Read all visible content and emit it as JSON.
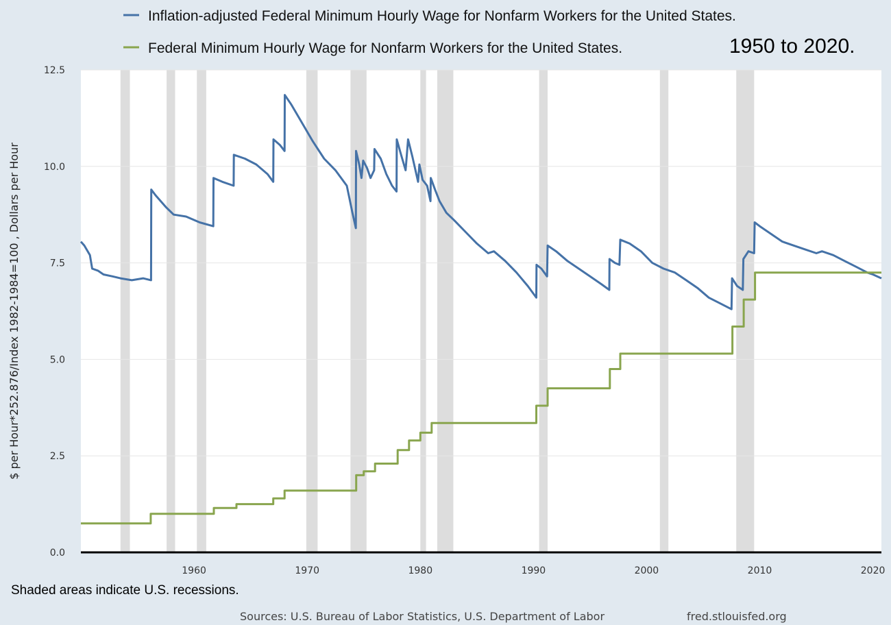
{
  "chart_data": {
    "type": "line",
    "subtitle": "1950 to 2020.",
    "ylabel": "$ per Hour*252.876/Index 1982-1984=100 , Dollars per Hour",
    "xlabel": "",
    "xlim": [
      1950.0,
      2020.75
    ],
    "ylim": [
      0,
      12.5
    ],
    "x_ticks": [
      1960,
      1970,
      1980,
      1990,
      2000,
      2010,
      2020
    ],
    "x_tick_labels": [
      "1960",
      "1970",
      "1980",
      "1990",
      "2000",
      "2010",
      "2020"
    ],
    "y_ticks": [
      0,
      2.5,
      5,
      7.5,
      10,
      12.5
    ],
    "y_tick_labels": [
      "0.0",
      "2.5",
      "5.0",
      "7.5",
      "10.0",
      "12.5"
    ],
    "grid": true,
    "legend_position": "top",
    "colors": {
      "real": "#4572a7",
      "nominal": "#89a54e",
      "recession": "#dddddd",
      "background": "#e1e9f0",
      "plot": "#ffffff"
    },
    "recessions": [
      [
        1953.5,
        1954.33
      ],
      [
        1957.58,
        1958.33
      ],
      [
        1960.25,
        1961.08
      ],
      [
        1969.92,
        1970.92
      ],
      [
        1973.83,
        1975.25
      ],
      [
        1980.0,
        1980.5
      ],
      [
        1981.5,
        1982.92
      ],
      [
        1990.5,
        1991.25
      ],
      [
        2001.17,
        2001.92
      ],
      [
        2007.92,
        2009.5
      ]
    ],
    "series": [
      {
        "name": "Inflation-adjusted Federal Minimum Hourly Wage for Nonfarm Workers for the United States.",
        "step": false,
        "points": [
          [
            1950.0,
            8.05
          ],
          [
            1950.3,
            7.95
          ],
          [
            1950.8,
            7.7
          ],
          [
            1951.0,
            7.35
          ],
          [
            1951.5,
            7.3
          ],
          [
            1952.0,
            7.2
          ],
          [
            1952.8,
            7.15
          ],
          [
            1953.5,
            7.1
          ],
          [
            1954.5,
            7.05
          ],
          [
            1955.5,
            7.1
          ],
          [
            1956.2,
            7.05
          ],
          [
            1956.22,
            9.4
          ],
          [
            1956.6,
            9.25
          ],
          [
            1957.5,
            8.95
          ],
          [
            1958.2,
            8.75
          ],
          [
            1959.3,
            8.7
          ],
          [
            1960.5,
            8.55
          ],
          [
            1961.7,
            8.45
          ],
          [
            1961.72,
            9.7
          ],
          [
            1962.5,
            9.6
          ],
          [
            1963.5,
            9.5
          ],
          [
            1963.52,
            10.3
          ],
          [
            1964.5,
            10.2
          ],
          [
            1965.5,
            10.05
          ],
          [
            1966.5,
            9.8
          ],
          [
            1967.0,
            9.6
          ],
          [
            1967.02,
            10.7
          ],
          [
            1967.6,
            10.55
          ],
          [
            1968.0,
            10.4
          ],
          [
            1968.02,
            11.85
          ],
          [
            1968.6,
            11.6
          ],
          [
            1969.5,
            11.15
          ],
          [
            1970.5,
            10.65
          ],
          [
            1971.5,
            10.2
          ],
          [
            1972.5,
            9.9
          ],
          [
            1973.5,
            9.5
          ],
          [
            1974.0,
            8.8
          ],
          [
            1974.3,
            8.4
          ],
          [
            1974.32,
            10.4
          ],
          [
            1974.6,
            10.05
          ],
          [
            1974.8,
            9.7
          ],
          [
            1974.95,
            10.15
          ],
          [
            1975.3,
            9.95
          ],
          [
            1975.6,
            9.7
          ],
          [
            1975.92,
            9.9
          ],
          [
            1975.95,
            10.45
          ],
          [
            1976.5,
            10.2
          ],
          [
            1977.0,
            9.8
          ],
          [
            1977.5,
            9.5
          ],
          [
            1977.9,
            9.35
          ],
          [
            1977.92,
            10.7
          ],
          [
            1978.3,
            10.3
          ],
          [
            1978.7,
            9.9
          ],
          [
            1978.92,
            10.7
          ],
          [
            1979.3,
            10.25
          ],
          [
            1979.8,
            9.6
          ],
          [
            1979.92,
            10.05
          ],
          [
            1980.2,
            9.65
          ],
          [
            1980.6,
            9.5
          ],
          [
            1980.9,
            9.1
          ],
          [
            1980.92,
            9.7
          ],
          [
            1981.3,
            9.4
          ],
          [
            1981.7,
            9.1
          ],
          [
            1982.3,
            8.8
          ],
          [
            1983.0,
            8.6
          ],
          [
            1984.0,
            8.3
          ],
          [
            1985.0,
            8.0
          ],
          [
            1986.0,
            7.75
          ],
          [
            1986.5,
            7.8
          ],
          [
            1987.5,
            7.55
          ],
          [
            1988.5,
            7.25
          ],
          [
            1989.5,
            6.9
          ],
          [
            1990.25,
            6.6
          ],
          [
            1990.27,
            7.45
          ],
          [
            1990.7,
            7.35
          ],
          [
            1991.2,
            7.15
          ],
          [
            1991.25,
            7.95
          ],
          [
            1992.0,
            7.8
          ],
          [
            1993.0,
            7.55
          ],
          [
            1994.0,
            7.35
          ],
          [
            1995.0,
            7.15
          ],
          [
            1996.0,
            6.95
          ],
          [
            1996.7,
            6.8
          ],
          [
            1996.72,
            7.6
          ],
          [
            1997.2,
            7.5
          ],
          [
            1997.6,
            7.45
          ],
          [
            1997.67,
            8.1
          ],
          [
            1998.5,
            8.0
          ],
          [
            1999.5,
            7.8
          ],
          [
            2000.5,
            7.5
          ],
          [
            2001.5,
            7.35
          ],
          [
            2002.5,
            7.25
          ],
          [
            2003.5,
            7.05
          ],
          [
            2004.5,
            6.85
          ],
          [
            2005.5,
            6.6
          ],
          [
            2006.5,
            6.45
          ],
          [
            2007.5,
            6.3
          ],
          [
            2007.55,
            7.1
          ],
          [
            2008.0,
            6.9
          ],
          [
            2008.5,
            6.8
          ],
          [
            2008.55,
            7.6
          ],
          [
            2009.0,
            7.8
          ],
          [
            2009.5,
            7.75
          ],
          [
            2009.55,
            8.55
          ],
          [
            2010.0,
            8.45
          ],
          [
            2011.0,
            8.25
          ],
          [
            2012.0,
            8.05
          ],
          [
            2013.0,
            7.95
          ],
          [
            2014.0,
            7.85
          ],
          [
            2015.0,
            7.75
          ],
          [
            2015.5,
            7.8
          ],
          [
            2016.5,
            7.7
          ],
          [
            2017.5,
            7.55
          ],
          [
            2018.5,
            7.4
          ],
          [
            2019.5,
            7.25
          ],
          [
            2020.0,
            7.2
          ],
          [
            2020.75,
            7.1
          ]
        ]
      },
      {
        "name": "Federal Minimum Hourly Wage for Nonfarm Workers for the United States.",
        "step": true,
        "points": [
          [
            1950.0,
            0.75
          ],
          [
            1956.17,
            1.0
          ],
          [
            1961.75,
            1.15
          ],
          [
            1963.75,
            1.25
          ],
          [
            1967.0,
            1.4
          ],
          [
            1968.0,
            1.6
          ],
          [
            1974.33,
            2.0
          ],
          [
            1975.0,
            2.1
          ],
          [
            1976.0,
            2.3
          ],
          [
            1978.0,
            2.65
          ],
          [
            1979.0,
            2.9
          ],
          [
            1980.0,
            3.1
          ],
          [
            1981.0,
            3.35
          ],
          [
            1990.25,
            3.8
          ],
          [
            1991.25,
            4.25
          ],
          [
            1996.75,
            4.75
          ],
          [
            1997.67,
            5.15
          ],
          [
            2007.58,
            5.85
          ],
          [
            2008.58,
            6.55
          ],
          [
            2009.58,
            7.25
          ],
          [
            2020.75,
            7.25
          ]
        ]
      }
    ]
  },
  "footer": {
    "note": "Shaded areas indicate U.S. recessions.",
    "sources": "Sources: U.S. Bureau of Labor Statistics, U.S. Department of Labor",
    "site": "fred.stlouisfed.org"
  }
}
